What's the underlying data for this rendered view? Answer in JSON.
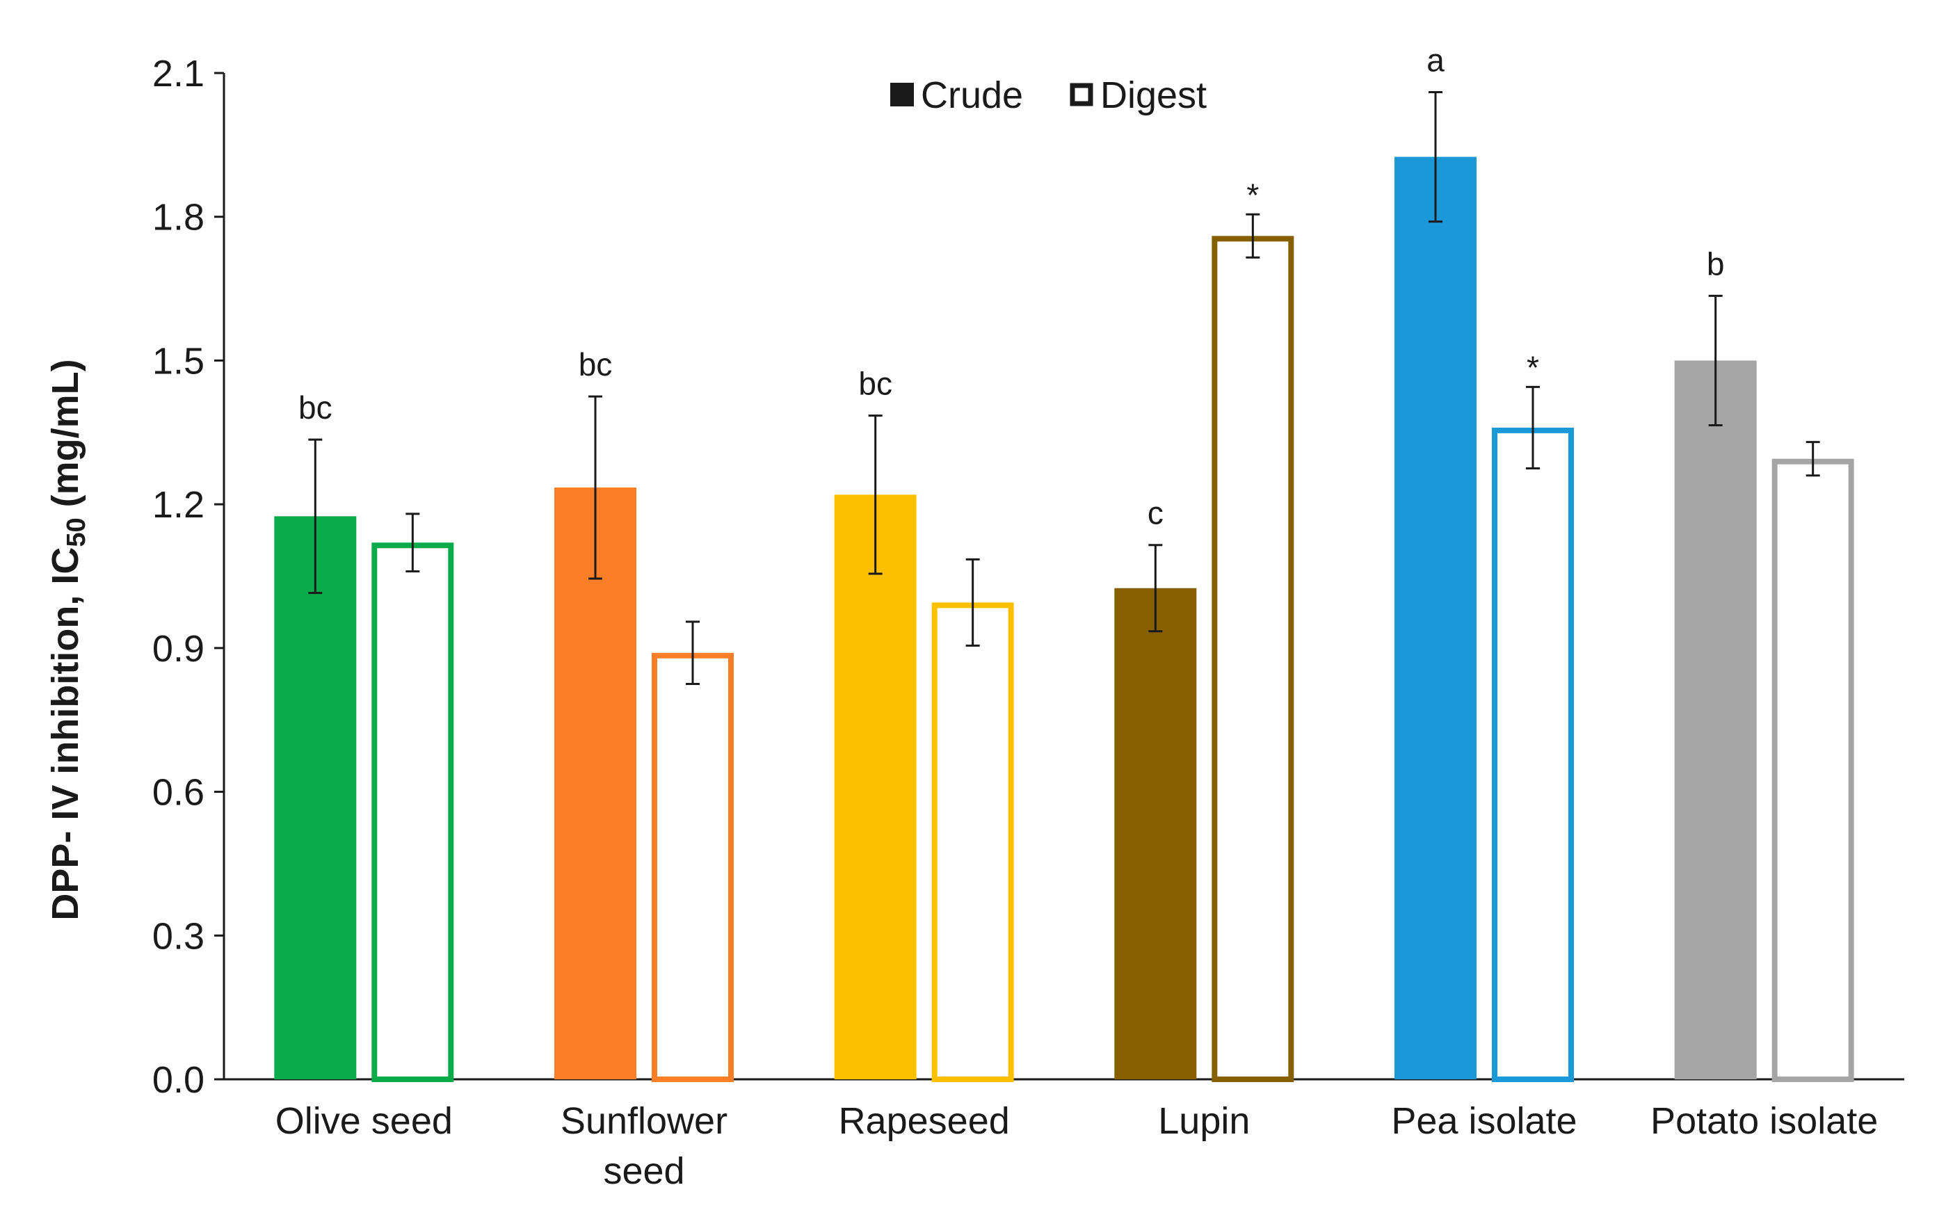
{
  "chart_data": {
    "type": "bar",
    "title": "",
    "ylabel_main": "DPP- IV inhibition, IC",
    "ylabel_sub": "50",
    "ylabel_unit": " (mg/mL)",
    "xlabel": "",
    "ylim": [
      0,
      2.1
    ],
    "yticks": [
      "0.0",
      "0.3",
      "0.6",
      "0.9",
      "1.2",
      "1.5",
      "1.8",
      "2.1"
    ],
    "grid": false,
    "legend": {
      "placement": "top-center",
      "entries": [
        {
          "label": "Crude",
          "style": "filled"
        },
        {
          "label": "Digest",
          "style": "outline"
        }
      ]
    },
    "categories": [
      {
        "lines": [
          "Olive seed"
        ],
        "color": "#0aab4a"
      },
      {
        "lines": [
          "Sunflower",
          "seed"
        ],
        "color": "#fc7f28"
      },
      {
        "lines": [
          "Rapeseed"
        ],
        "color": "#fdc000"
      },
      {
        "lines": [
          "Lupin"
        ],
        "color": "#866000"
      },
      {
        "lines": [
          "Pea isolate"
        ],
        "color": "#1a98d8"
      },
      {
        "lines": [
          "Potato isolate"
        ],
        "color": "#a5a5a5"
      }
    ],
    "series": [
      {
        "name": "Crude",
        "values": [
          1.175,
          1.235,
          1.22,
          1.025,
          1.925,
          1.5
        ],
        "errors": [
          0.16,
          0.19,
          0.165,
          0.09,
          0.135,
          0.135
        ],
        "annotations": [
          "bc",
          "bc",
          "bc",
          "c",
          "a",
          "b"
        ]
      },
      {
        "name": "Digest",
        "values": [
          1.12,
          0.89,
          0.995,
          1.76,
          1.36,
          1.295
        ],
        "errors": [
          0.06,
          0.065,
          0.09,
          0.045,
          0.085,
          0.035
        ],
        "annotations": [
          "",
          "",
          "",
          "*",
          "*",
          ""
        ]
      }
    ]
  }
}
